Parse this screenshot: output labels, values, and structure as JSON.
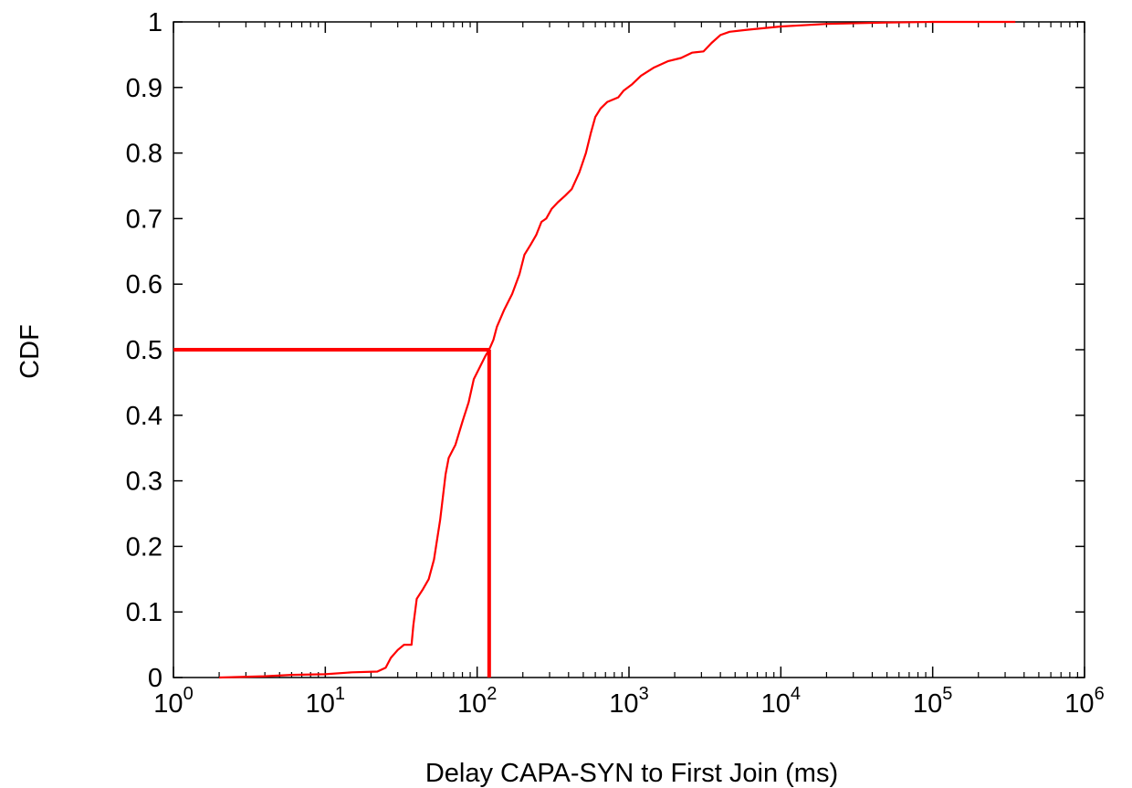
{
  "chart_data": {
    "type": "line",
    "title": "",
    "xlabel": "Delay CAPA-SYN to First Join (ms)",
    "ylabel": "CDF",
    "x_scale": "log",
    "xlim": [
      1,
      1000000
    ],
    "ylim": [
      0,
      1
    ],
    "x_ticks": [
      {
        "value": 1,
        "base": "10",
        "exp": "0"
      },
      {
        "value": 10,
        "base": "10",
        "exp": "1"
      },
      {
        "value": 100,
        "base": "10",
        "exp": "2"
      },
      {
        "value": 1000,
        "base": "10",
        "exp": "3"
      },
      {
        "value": 10000,
        "base": "10",
        "exp": "4"
      },
      {
        "value": 100000,
        "base": "10",
        "exp": "5"
      },
      {
        "value": 1000000,
        "base": "10",
        "exp": "6"
      }
    ],
    "y_ticks": [
      "0",
      "0.1",
      "0.2",
      "0.3",
      "0.4",
      "0.5",
      "0.6",
      "0.7",
      "0.8",
      "0.9",
      "1"
    ],
    "grid": false,
    "legend": "none",
    "colors": {
      "series": "#ff0000",
      "axis": "#000000",
      "marker": "#ff0000"
    },
    "series": [
      {
        "points": [
          [
            2.0,
            0.0
          ],
          [
            4.0,
            0.002
          ],
          [
            6.0,
            0.004
          ],
          [
            10,
            0.005
          ],
          [
            15,
            0.008
          ],
          [
            22,
            0.009
          ],
          [
            25,
            0.015
          ],
          [
            27,
            0.03
          ],
          [
            30,
            0.042
          ],
          [
            33,
            0.05
          ],
          [
            37,
            0.05
          ],
          [
            38,
            0.08
          ],
          [
            40,
            0.12
          ],
          [
            44,
            0.135
          ],
          [
            48,
            0.15
          ],
          [
            52,
            0.18
          ],
          [
            57,
            0.24
          ],
          [
            62,
            0.31
          ],
          [
            65,
            0.335
          ],
          [
            72,
            0.355
          ],
          [
            80,
            0.39
          ],
          [
            88,
            0.42
          ],
          [
            95,
            0.455
          ],
          [
            105,
            0.475
          ],
          [
            113,
            0.49
          ],
          [
            120,
            0.5
          ],
          [
            128,
            0.515
          ],
          [
            135,
            0.535
          ],
          [
            150,
            0.56
          ],
          [
            170,
            0.585
          ],
          [
            190,
            0.615
          ],
          [
            205,
            0.645
          ],
          [
            225,
            0.66
          ],
          [
            245,
            0.675
          ],
          [
            265,
            0.695
          ],
          [
            285,
            0.7
          ],
          [
            310,
            0.715
          ],
          [
            340,
            0.725
          ],
          [
            380,
            0.735
          ],
          [
            420,
            0.745
          ],
          [
            470,
            0.77
          ],
          [
            520,
            0.8
          ],
          [
            560,
            0.83
          ],
          [
            600,
            0.855
          ],
          [
            650,
            0.868
          ],
          [
            720,
            0.878
          ],
          [
            850,
            0.885
          ],
          [
            920,
            0.895
          ],
          [
            1050,
            0.905
          ],
          [
            1200,
            0.918
          ],
          [
            1450,
            0.93
          ],
          [
            1800,
            0.94
          ],
          [
            2200,
            0.945
          ],
          [
            2600,
            0.953
          ],
          [
            3100,
            0.955
          ],
          [
            3500,
            0.968
          ],
          [
            4000,
            0.98
          ],
          [
            4600,
            0.985
          ],
          [
            6000,
            0.988
          ],
          [
            10000,
            0.993
          ],
          [
            20000,
            0.997
          ],
          [
            50000,
            0.999
          ],
          [
            100000,
            1.0
          ],
          [
            350000,
            1.0
          ]
        ]
      }
    ],
    "median_marker": {
      "x": 120,
      "y": 0.5
    }
  }
}
